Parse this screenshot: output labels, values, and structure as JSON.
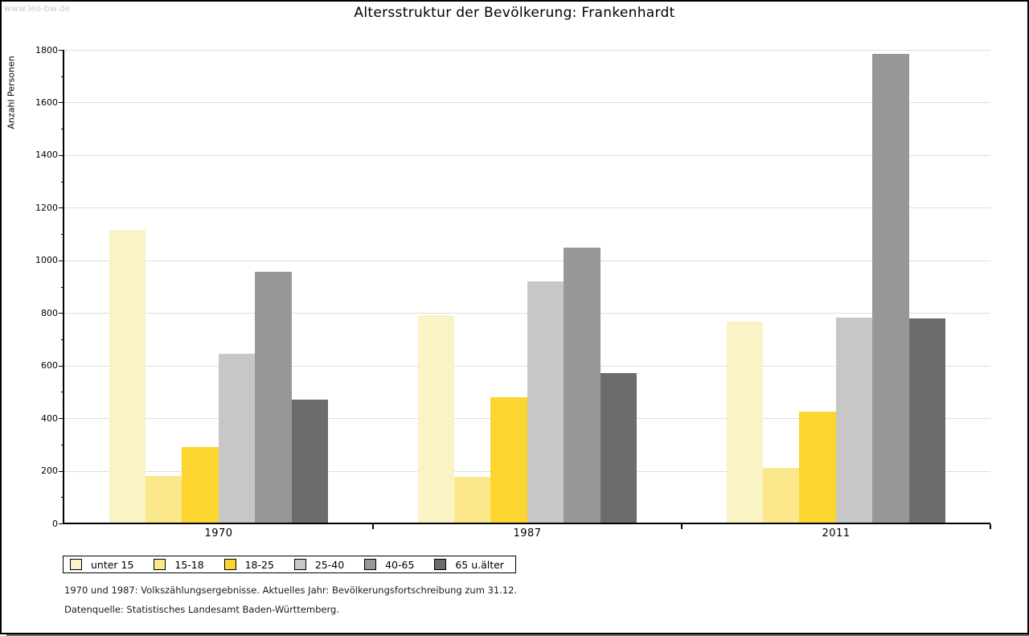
{
  "watermark": "www.leo-bw.de",
  "header": {
    "title": "Altersstruktur der Bevölkerung: Frankenhardt"
  },
  "chart_data": {
    "type": "bar",
    "title": "Altersstruktur der Bevölkerung: Frankenhardt",
    "xlabel": "",
    "ylabel": "Anzahl Personen",
    "ylim": [
      0,
      1800
    ],
    "ytick_step": 200,
    "minor_tick_step": 100,
    "grid": true,
    "legend_position": "bottom-left",
    "categories": [
      "1970",
      "1987",
      "2011"
    ],
    "series": [
      {
        "name": "unter 15",
        "color": "#faf3c5",
        "values": [
          1117,
          792,
          768
        ]
      },
      {
        "name": "15-18",
        "color": "#fbe88c",
        "values": [
          180,
          177,
          210
        ]
      },
      {
        "name": "18-25",
        "color": "#fcd52f",
        "values": [
          290,
          479,
          425
        ]
      },
      {
        "name": "25-40",
        "color": "#c7c7c7",
        "values": [
          644,
          921,
          781
        ]
      },
      {
        "name": "40-65",
        "color": "#979797",
        "values": [
          956,
          1048,
          1786
        ]
      },
      {
        "name": "65 u.älter",
        "color": "#6c6c6c",
        "values": [
          472,
          571,
          780
        ]
      }
    ]
  },
  "footnotes": {
    "line1": "1970 und 1987: Volkszählungsergebnisse. Aktuelles Jahr: Bevölkerungsfortschreibung zum 31.12.",
    "line2": "Datenquelle: Statistisches Landesamt Baden-Württemberg."
  }
}
